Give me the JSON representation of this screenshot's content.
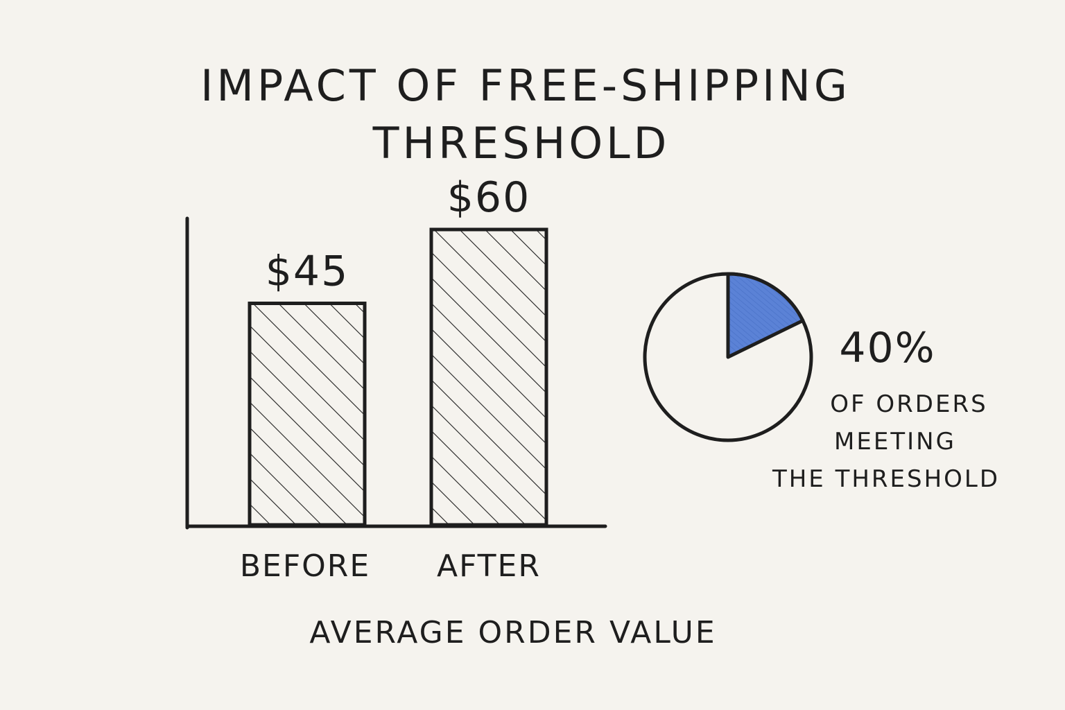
{
  "chart_data": [
    {
      "type": "bar",
      "title": "IMPACT OF FREE-SHIPPING THRESHOLD",
      "title_lines": [
        "IMPACT OF FREE-SHIPPING",
        "THRESHOLD"
      ],
      "xlabel": "AVERAGE ORDER VALUE",
      "ylabel": "",
      "categories": [
        "BEFORE",
        "AFTER"
      ],
      "values": [
        45,
        60
      ],
      "value_labels": [
        "$45",
        "$60"
      ],
      "ylim": [
        0,
        80
      ],
      "grid": false,
      "bar_fill": "hatched",
      "colors": {
        "ink": "#1e1e1e",
        "background": "#f5f3ee"
      }
    },
    {
      "type": "pie",
      "values": [
        40
      ],
      "label": "40%",
      "caption_lines": [
        "OF ORDERS",
        "MEETING",
        "THE THRESHOLD"
      ],
      "colors": {
        "highlight": "#5b82d6",
        "rest": "#f5f3ee",
        "ink": "#1e1e1e"
      }
    }
  ]
}
